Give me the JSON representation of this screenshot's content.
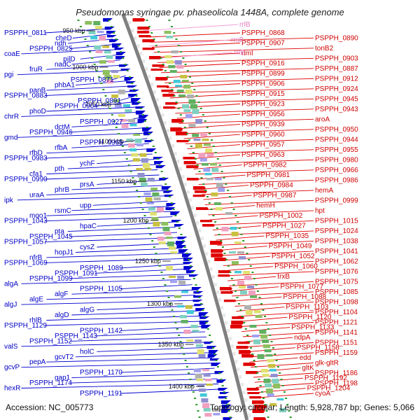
{
  "title": "Pseudomonas syringae pv. phaseolicola 1448A, complete genome",
  "accession": "Accession: NC_005773",
  "summary": "Topology: circular; Length: 5,928,787 bp; Genes: 5,066",
  "colors": {
    "forward_strand": "#e00000",
    "reverse_strand": "#0000d0",
    "rrna": "#f4a0d8",
    "backbone": "#808080",
    "tick_marks": "#2a9a2a"
  },
  "kbp_ticks": [
    "950 kbp",
    "1000 kbp",
    "1050 kbp",
    "1100 kbp",
    "1150 kbp",
    "1200 kbp",
    "1250 kbp",
    "1300 kbp",
    "1350 kbp",
    "1400 kbp"
  ],
  "left_labels": [
    "PSPPH_0811",
    "cheD",
    "ndh",
    "PSPPH_0825",
    "coaE",
    "pilD",
    "nadC",
    "fruR",
    "pgi",
    "PSPPH_0871",
    "phbA1",
    "panB",
    "PSPPH_0883",
    "PSPPH_0891",
    "PSPPH_0904",
    "phoD",
    "chrR",
    "PSPPH_0927",
    "dctM",
    "PSPPH_0946",
    "gmd",
    "PSPPH_0965",
    "rfbA",
    "rfbD",
    "PSPPH_0983",
    "ychF",
    "pth",
    "cfa1",
    "PSPPH_0990",
    "prsA",
    "phrB",
    "uraA",
    "ipk",
    "upp",
    "rsmC",
    "mqo1",
    "PSPPH_1043",
    "hpaC",
    "pta",
    "PSPPH_1045",
    "PSPPH_1057",
    "cysZ",
    "hopJ1",
    "nfrB",
    "PSPPH_1069",
    "PSPPH_1089",
    "PSPPH_1091",
    "PSPPH_1099",
    "algA",
    "PSPPH_1105",
    "algF",
    "algE",
    "algJ",
    "algG",
    "algD",
    "rhlB",
    "PSPPH_1129",
    "PSPPH_1142",
    "PSPPH_1143",
    "PSPPH_1152",
    "valS",
    "holC",
    "gcvT2",
    "pepA",
    "gcvP",
    "PSPPH_1170",
    "gap1",
    "PSPPH_1174",
    "hexR",
    "PSPPH_1191"
  ],
  "right_labels": [
    "PSPPH_0868",
    "PSPPH_0890",
    "PSPPH_0907",
    "tonB2",
    "rimI",
    "PSPPH_0903",
    "PSPPH_0916",
    "PSPPH_0887",
    "PSPPH_0899",
    "PSPPH_0912",
    "PSPPH_0906",
    "PSPPH_0924",
    "PSPPH_0915",
    "PSPPH_0945",
    "PSPPH_0923",
    "PSPPH_0943",
    "PSPPH_0956",
    "aroA",
    "PSPPH_0939",
    "PSPPH_0950",
    "PSPPH_0960",
    "PSPPH_0944",
    "PSPPH_0957",
    "PSPPH_0955",
    "PSPPH_0963",
    "PSPPH_0980",
    "PSPPH_0982",
    "PSPPH_0966",
    "PSPPH_0981",
    "PSPPH_0986",
    "PSPPH_0984",
    "hemA",
    "PSPPH_0987",
    "PSPPH_0999",
    "hemH",
    "hpt",
    "PSPPH_1002",
    "PSPPH_1015",
    "PSPPH_1027",
    "PSPPH_1024",
    "PSPPH_1035",
    "PSPPH_1038",
    "PSPPH_1049",
    "PSPPH_1041",
    "PSPPH_1052",
    "PSPPH_1062",
    "PSPPH_1060",
    "PSPPH_1076",
    "trxB",
    "PSPPH_1075",
    "PSPPH_1077",
    "PSPPH_1085",
    "PSPPH_1088",
    "PSPPH_1098",
    "PSPPH_1103",
    "PSPPH_1104",
    "PSPPH_1120",
    "PSPPH_1121",
    "PSPPH_1133",
    "PSPPH_1141",
    "ndpA",
    "PSPPH_1151",
    "PSPPH_1158",
    "PSPPH_1159",
    "edd",
    "glk-gltR",
    "gltK",
    "PSPPH_1186",
    "PSPPH_1192",
    "PSPPH_1198",
    "PSPPH_1204",
    "cyoA"
  ],
  "rrna_labels": [
    "rrlB",
    "rrsB",
    "rrfB"
  ]
}
